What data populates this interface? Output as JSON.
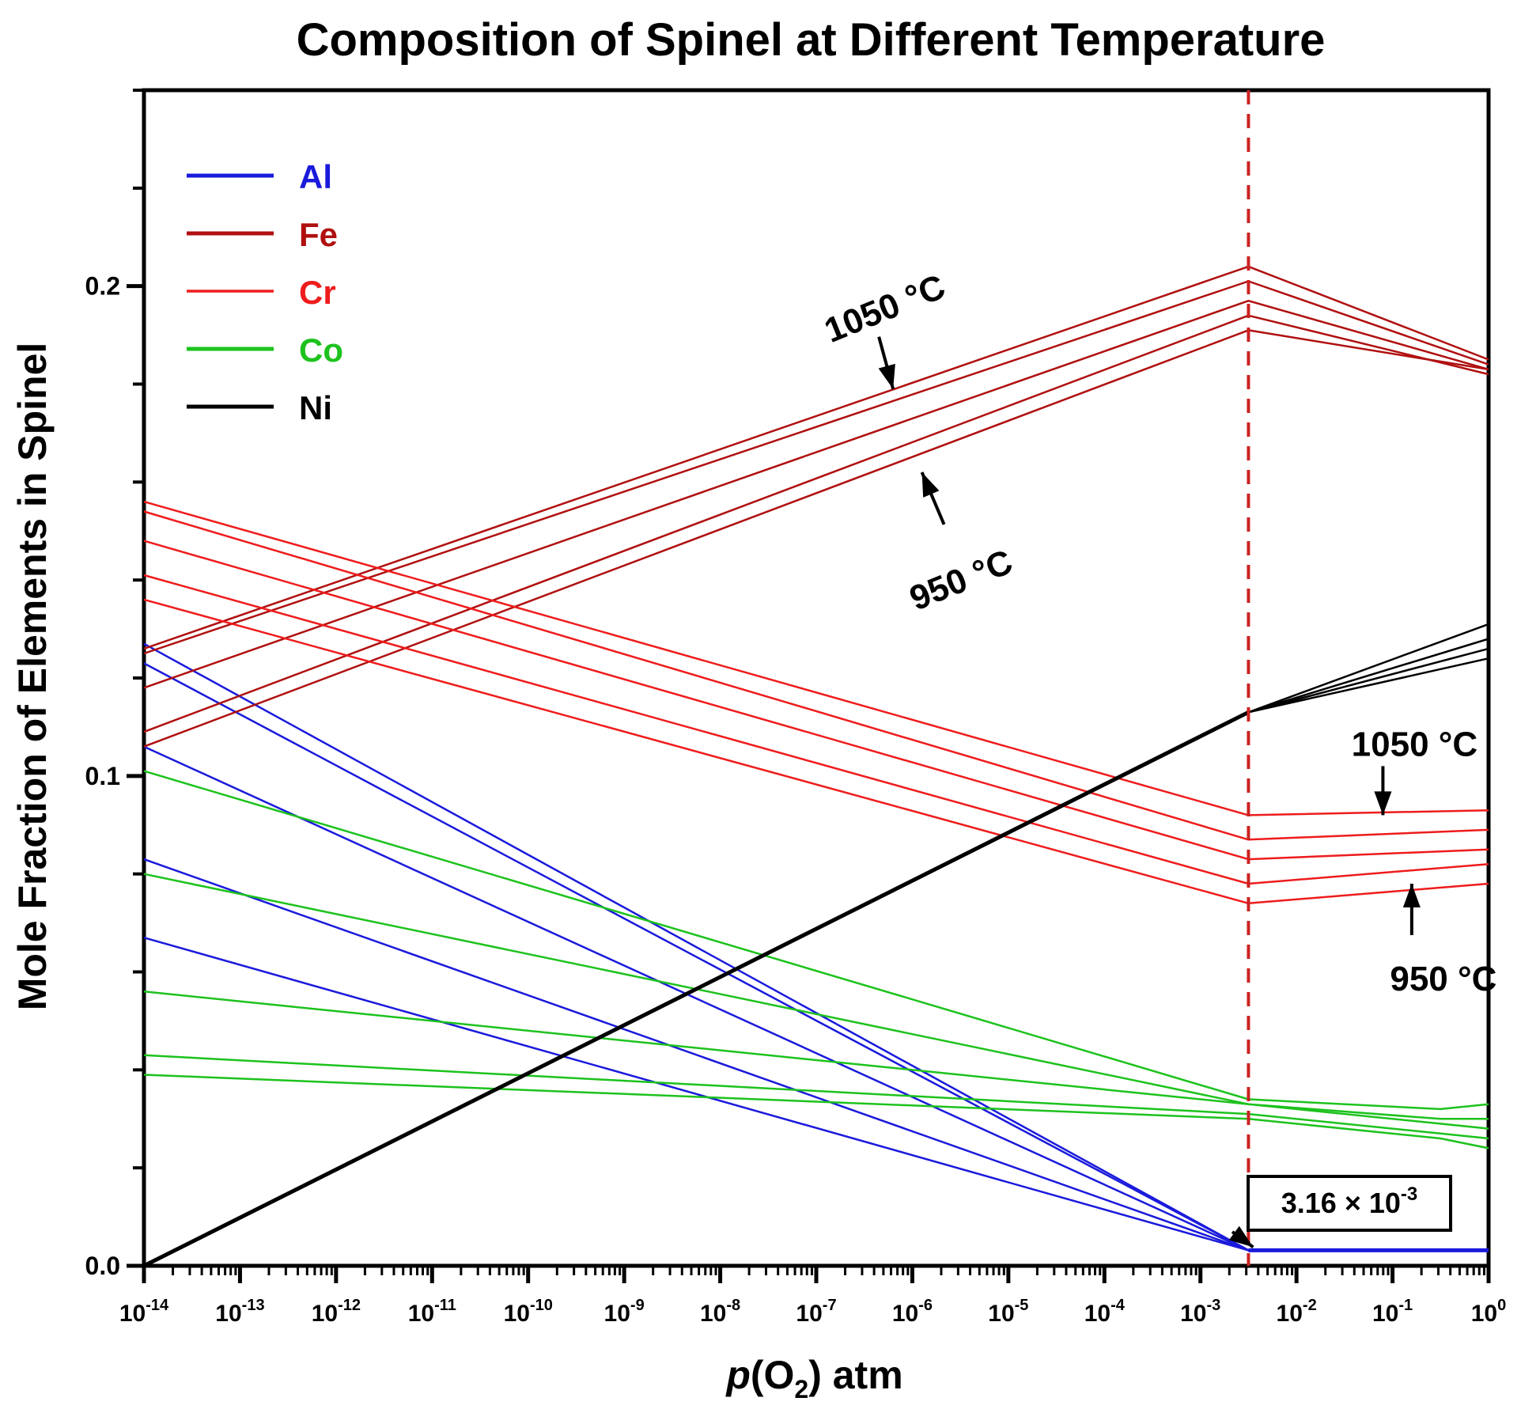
{
  "chart_data": {
    "type": "line",
    "title": "Composition of Spinel at Different Temperature",
    "ylabel": "Mole Fraction of Elements in Spinel",
    "xlabel": {
      "italic": "p",
      "pre": "(O",
      "sub": "2",
      "post": ") atm"
    },
    "x_scale": "log10",
    "xlim": [
      -14,
      0
    ],
    "ylim": [
      0,
      0.24
    ],
    "x_ticks": [
      {
        "value": -14,
        "base": "10",
        "exp": "-14"
      },
      {
        "value": -13,
        "base": "10",
        "exp": "-13"
      },
      {
        "value": -12,
        "base": "10",
        "exp": "-12"
      },
      {
        "value": -11,
        "base": "10",
        "exp": "-11"
      },
      {
        "value": -10,
        "base": "10",
        "exp": "-10"
      },
      {
        "value": -9,
        "base": "10",
        "exp": "-9"
      },
      {
        "value": -8,
        "base": "10",
        "exp": "-8"
      },
      {
        "value": -7,
        "base": "10",
        "exp": "-7"
      },
      {
        "value": -6,
        "base": "10",
        "exp": "-6"
      },
      {
        "value": -5,
        "base": "10",
        "exp": "-5"
      },
      {
        "value": -4,
        "base": "10",
        "exp": "-4"
      },
      {
        "value": -3,
        "base": "10",
        "exp": "-3"
      },
      {
        "value": -2,
        "base": "10",
        "exp": "-2"
      },
      {
        "value": -1,
        "base": "10",
        "exp": "-1"
      },
      {
        "value": 0,
        "base": "10",
        "exp": "0"
      }
    ],
    "y_ticks": [
      {
        "value": 0.0,
        "label": "0.0"
      },
      {
        "value": 0.1,
        "label": "0.1"
      },
      {
        "value": 0.2,
        "label": "0.2"
      }
    ],
    "y_minor_step": 0.02,
    "vline": {
      "x": -2.5,
      "color": "#cc2222",
      "style": "dashed"
    },
    "colors": {
      "Al": "#1a1adc",
      "Fe": "#b01010",
      "Cr": "#ee1c1c",
      "Co": "#1dc21d",
      "Ni": "#000000"
    },
    "legend": [
      {
        "label": "Al",
        "key": "Al",
        "width": 5
      },
      {
        "label": "Fe",
        "key": "Fe",
        "width": 5
      },
      {
        "label": "Cr",
        "key": "Cr",
        "width": 3.5
      },
      {
        "label": "Co",
        "key": "Co",
        "width": 5
      },
      {
        "label": "Ni",
        "key": "Ni",
        "width": 5
      }
    ],
    "series": [
      {
        "name": "Al",
        "element": "Al",
        "width": 2.5,
        "x": [
          -14,
          -2.5,
          0
        ],
        "y": [
          0.127,
          0.00316,
          0.00316
        ]
      },
      {
        "name": "Al",
        "element": "Al",
        "width": 2.5,
        "x": [
          -14,
          -2.5,
          0
        ],
        "y": [
          0.123,
          0.00316,
          0.00316
        ]
      },
      {
        "name": "Al",
        "element": "Al",
        "width": 2.5,
        "x": [
          -14,
          -2.5,
          0
        ],
        "y": [
          0.106,
          0.00316,
          0.00316
        ]
      },
      {
        "name": "Al",
        "element": "Al",
        "width": 2.5,
        "x": [
          -14,
          -2.5,
          0
        ],
        "y": [
          0.083,
          0.00316,
          0.00316
        ]
      },
      {
        "name": "Al",
        "element": "Al",
        "width": 2.5,
        "x": [
          -14,
          -2.5,
          0
        ],
        "y": [
          0.067,
          0.00316,
          0.00316
        ]
      },
      {
        "name": "Al",
        "element": "Al",
        "width": 5,
        "x": [
          -2.5,
          0
        ],
        "y": [
          0.00316,
          0.00316
        ]
      },
      {
        "name": "Fe",
        "element": "Fe",
        "width": 2.5,
        "x": [
          -14,
          -2.5,
          0
        ],
        "y": [
          0.126,
          0.204,
          0.185
        ]
      },
      {
        "name": "Fe",
        "element": "Fe",
        "width": 2.5,
        "x": [
          -14,
          -2.5,
          0
        ],
        "y": [
          0.125,
          0.201,
          0.184
        ]
      },
      {
        "name": "Fe",
        "element": "Fe",
        "width": 2.5,
        "x": [
          -14,
          -2.5,
          0
        ],
        "y": [
          0.118,
          0.197,
          0.183
        ]
      },
      {
        "name": "Fe",
        "element": "Fe",
        "width": 2.5,
        "x": [
          -14,
          -2.5,
          0
        ],
        "y": [
          0.109,
          0.194,
          0.182
        ]
      },
      {
        "name": "Fe",
        "element": "Fe",
        "width": 2.5,
        "x": [
          -14,
          -2.5,
          0
        ],
        "y": [
          0.106,
          0.191,
          0.183
        ]
      },
      {
        "name": "Cr",
        "element": "Cr",
        "width": 2.5,
        "x": [
          -14,
          -2.5,
          0
        ],
        "y": [
          0.156,
          0.092,
          0.093
        ]
      },
      {
        "name": "Cr",
        "element": "Cr",
        "width": 2.5,
        "x": [
          -14,
          -2.5,
          0
        ],
        "y": [
          0.154,
          0.087,
          0.089
        ]
      },
      {
        "name": "Cr",
        "element": "Cr",
        "width": 2.5,
        "x": [
          -14,
          -2.5,
          0
        ],
        "y": [
          0.148,
          0.083,
          0.085
        ]
      },
      {
        "name": "Cr",
        "element": "Cr",
        "width": 2.5,
        "x": [
          -14,
          -2.5,
          0
        ],
        "y": [
          0.141,
          0.078,
          0.082
        ]
      },
      {
        "name": "Cr",
        "element": "Cr",
        "width": 2.5,
        "x": [
          -14,
          -2.5,
          0
        ],
        "y": [
          0.136,
          0.074,
          0.078
        ]
      },
      {
        "name": "Co",
        "element": "Co",
        "width": 2.5,
        "x": [
          -14,
          -2.5,
          -0.5,
          0
        ],
        "y": [
          0.101,
          0.034,
          0.032,
          0.033
        ]
      },
      {
        "name": "Co",
        "element": "Co",
        "width": 2.5,
        "x": [
          -14,
          -2.5,
          -0.5,
          0
        ],
        "y": [
          0.08,
          0.033,
          0.03,
          0.03
        ]
      },
      {
        "name": "Co",
        "element": "Co",
        "width": 2.5,
        "x": [
          -14,
          -2.5,
          -0.5,
          0
        ],
        "y": [
          0.056,
          0.033,
          0.029,
          0.028
        ]
      },
      {
        "name": "Co",
        "element": "Co",
        "width": 2.5,
        "x": [
          -14,
          -2.5,
          -0.5,
          0
        ],
        "y": [
          0.043,
          0.031,
          0.027,
          0.026
        ]
      },
      {
        "name": "Co",
        "element": "Co",
        "width": 2.5,
        "x": [
          -14,
          -2.5,
          -0.5,
          0
        ],
        "y": [
          0.039,
          0.03,
          0.026,
          0.024
        ]
      },
      {
        "name": "Ni",
        "element": "Ni",
        "width": 5,
        "x": [
          -14,
          -2.5
        ],
        "y": [
          0.0,
          0.113
        ]
      },
      {
        "name": "Ni",
        "element": "Ni",
        "width": 2.5,
        "x": [
          -2.5,
          0
        ],
        "y": [
          0.113,
          0.131
        ]
      },
      {
        "name": "Ni",
        "element": "Ni",
        "width": 2.5,
        "x": [
          -2.5,
          0
        ],
        "y": [
          0.113,
          0.128
        ]
      },
      {
        "name": "Ni",
        "element": "Ni",
        "width": 2.5,
        "x": [
          -2.5,
          0
        ],
        "y": [
          0.113,
          0.126
        ]
      },
      {
        "name": "Ni",
        "element": "Ni",
        "width": 2.5,
        "x": [
          -2.5,
          0
        ],
        "y": [
          0.113,
          0.124
        ]
      }
    ],
    "annotations": [
      {
        "text": "1050 °C",
        "target_x": -6.2,
        "target_y": 0.179,
        "placement": "above-left",
        "rotated": true
      },
      {
        "text": "950 °C",
        "target_x": -5.9,
        "target_y": 0.162,
        "placement": "below-right",
        "rotated": true
      },
      {
        "text": "1050 °C",
        "target_x": -1.1,
        "target_y": 0.092,
        "placement": "above",
        "rotated": false
      },
      {
        "text": "950 °C",
        "target_x": -0.8,
        "target_y": 0.078,
        "placement": "below",
        "rotated": false
      }
    ],
    "callout": {
      "base": "3.16 × 10",
      "exp": "-3",
      "value": 0.00316,
      "target_x": -2.5
    }
  }
}
